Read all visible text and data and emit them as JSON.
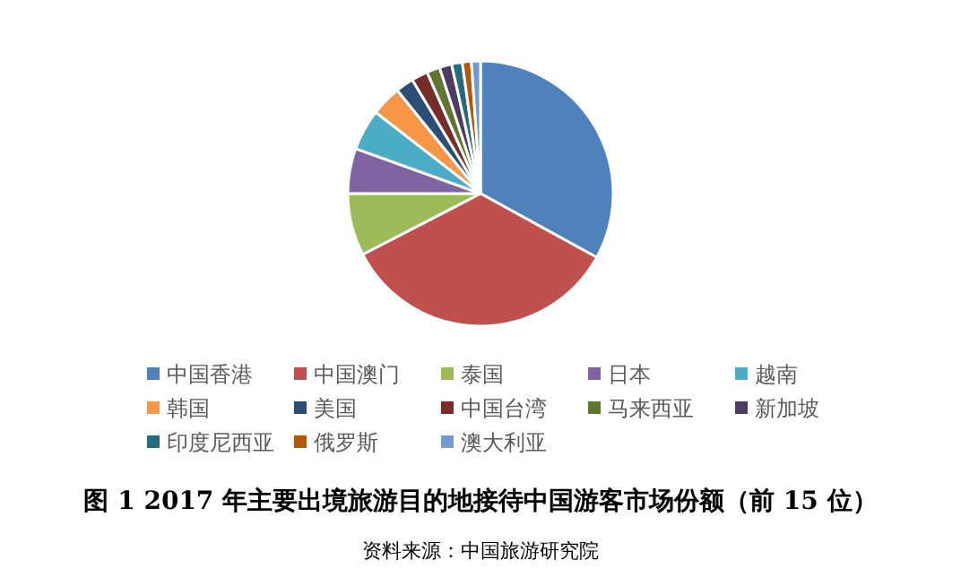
{
  "chart_data": {
    "type": "pie",
    "title": "图 1 2017 年主要出境旅游目的地接待中国游客市场份额（前 15 位）",
    "annotations": [
      "资料来源：中国旅游研究院"
    ],
    "legend": "bottom",
    "categories": [
      "中国香港",
      "中国澳门",
      "泰国",
      "日本",
      "越南",
      "韩国",
      "美国",
      "中国台湾",
      "马来西亚",
      "新加坡",
      "印度尼西亚",
      "俄罗斯",
      "澳大利亚"
    ],
    "values": [
      33,
      34.4,
      7.6,
      5.5,
      5,
      3.7,
      2.2,
      2,
      1.6,
      1.5,
      1.3,
      1.1,
      1.1
    ],
    "colors": [
      "#4f81bd",
      "#c0504d",
      "#9bbb59",
      "#8064a2",
      "#4bacc6",
      "#f79646",
      "#2c4d75",
      "#772c2a",
      "#5f7530",
      "#4d3b62",
      "#276a7c",
      "#b65708",
      "#729aca"
    ]
  }
}
